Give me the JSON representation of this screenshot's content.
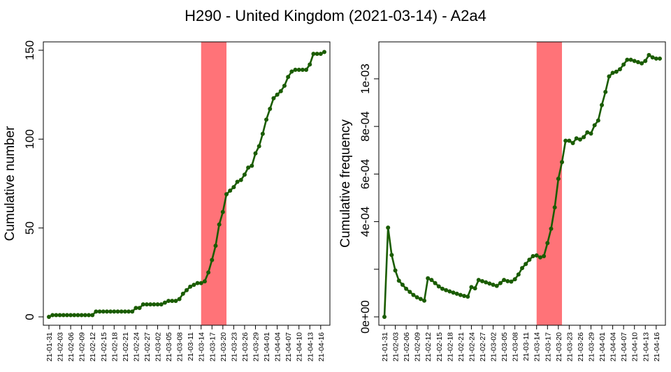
{
  "title": "H290 - United Kingdom (2021-03-14) - A2a4",
  "colors": {
    "line": "#1a5c00",
    "highlight": "#ff7378"
  },
  "x_tick_labels": [
    "21-01-31",
    "21-02-03",
    "21-02-06",
    "21-02-09",
    "21-02-12",
    "21-02-15",
    "21-02-18",
    "21-02-21",
    "21-02-24",
    "21-02-27",
    "21-03-02",
    "21-03-05",
    "21-03-08",
    "21-03-11",
    "21-03-14",
    "21-03-17",
    "21-03-20",
    "21-03-23",
    "21-03-26",
    "21-03-29",
    "21-04-01",
    "21-04-04",
    "21-04-07",
    "21-04-10",
    "21-04-13",
    "21-04-16"
  ],
  "chart_data": [
    {
      "type": "line",
      "ylabel": "Cumulative number",
      "ylim": [
        0,
        150
      ],
      "yticks": [
        0,
        50,
        100,
        150
      ],
      "ytick_labels": [
        "0",
        "50",
        "100",
        "150"
      ],
      "x_start": "2021-01-31",
      "x_end": "2021-04-17",
      "highlight_range": [
        "2021-03-14",
        "2021-03-21"
      ],
      "values": [
        0,
        1,
        1,
        1,
        1,
        1,
        1,
        1,
        1,
        1,
        1,
        1,
        1,
        3,
        3,
        3,
        3,
        3,
        3,
        3,
        3,
        3,
        3,
        3,
        5,
        5,
        7,
        7,
        7,
        7,
        7,
        7,
        8,
        9,
        9,
        9,
        10,
        13,
        15,
        17,
        18,
        19,
        19,
        20,
        25,
        32,
        40,
        52,
        59,
        69,
        71,
        73,
        76,
        77,
        80,
        84,
        85,
        92,
        96,
        103,
        111,
        117,
        123,
        125,
        127,
        130,
        135,
        138,
        139,
        139,
        139,
        139,
        142,
        148,
        148,
        148,
        149
      ]
    },
    {
      "type": "line",
      "ylabel": "Cumulative frequency",
      "ylim": [
        0,
        0.00112
      ],
      "yticks": [
        0,
        0.0002,
        0.0004,
        0.0006,
        0.0008,
        0.001
      ],
      "ytick_labels": [
        "0e+00",
        "",
        "4e-04",
        "6e-04",
        "8e-04",
        "1e-03"
      ],
      "x_start": "2021-01-31",
      "x_end": "2021-04-17",
      "highlight_range": [
        "2021-03-14",
        "2021-03-21"
      ],
      "values": [
        0,
        0.000375,
        0.00026,
        0.000195,
        0.000152,
        0.000135,
        0.000118,
        0.000105,
        9.2e-05,
        8.2e-05,
        7.5e-05,
        6.8e-05,
        0.000162,
        0.000155,
        0.000142,
        0.000128,
        0.000118,
        0.000112,
        0.000107,
        0.000102,
        9.7e-05,
        9.2e-05,
        8.8e-05,
        8.5e-05,
        0.000125,
        0.00012,
        0.000155,
        0.00015,
        0.000145,
        0.00014,
        0.000135,
        0.00013,
        0.000142,
        0.000155,
        0.00015,
        0.000148,
        0.000158,
        0.000178,
        0.000205,
        0.000222,
        0.00024,
        0.000255,
        0.000258,
        0.00025,
        0.000255,
        0.00031,
        0.00037,
        0.00046,
        0.00058,
        0.00065,
        0.00074,
        0.00074,
        0.00073,
        0.00075,
        0.000745,
        0.000755,
        0.000775,
        0.00077,
        0.000805,
        0.000825,
        0.00089,
        0.000945,
        0.00101,
        0.001025,
        0.00103,
        0.00104,
        0.00106,
        0.00108,
        0.00108,
        0.001075,
        0.00107,
        0.001065,
        0.001075,
        0.0011,
        0.00109,
        0.001085,
        0.001085
      ]
    }
  ]
}
